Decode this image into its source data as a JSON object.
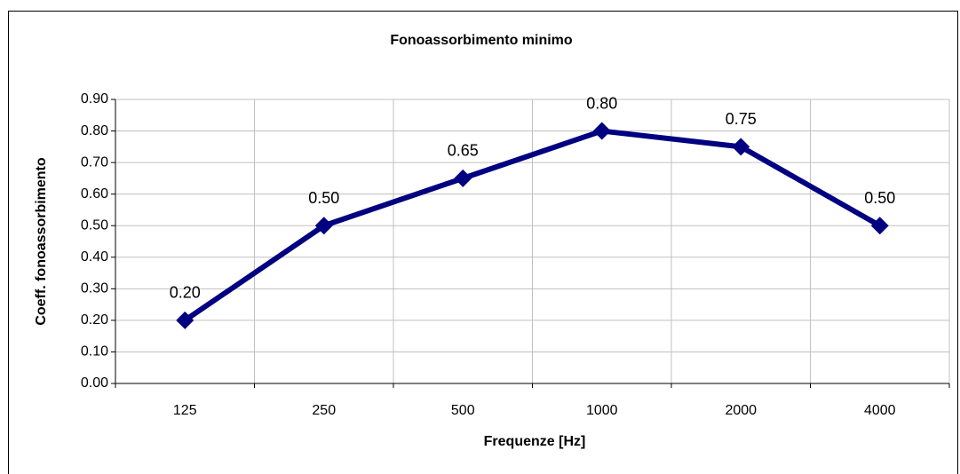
{
  "chart_data": {
    "type": "line",
    "title": "Fonoassorbimento minimo",
    "x_label": "Frequenze [Hz]",
    "y_label": "Coeff. fonoassorbimento",
    "categories": [
      "125",
      "250",
      "500",
      "1000",
      "2000",
      "4000"
    ],
    "series": [
      {
        "name": "Fonoassorbimento minimo",
        "color": "#000080",
        "values": [
          0.2,
          0.5,
          0.65,
          0.8,
          0.75,
          0.5
        ],
        "value_labels": [
          "0.20",
          "0.50",
          "0.65",
          "0.80",
          "0.75",
          "0.50"
        ]
      }
    ],
    "ylim": [
      0,
      0.9
    ],
    "yticks": [
      {
        "value": 0,
        "label": "0.00"
      },
      {
        "value": 0.1,
        "label": "0.10"
      },
      {
        "value": 0.2,
        "label": "0.20"
      },
      {
        "value": 0.3,
        "label": "0.30"
      },
      {
        "value": 0.4,
        "label": "0.40"
      },
      {
        "value": 0.5,
        "label": "0.50"
      },
      {
        "value": 0.6,
        "label": "0.60"
      },
      {
        "value": 0.7,
        "label": "0.70"
      },
      {
        "value": 0.8,
        "label": "0.80"
      },
      {
        "value": 0.9,
        "label": "0.90"
      }
    ],
    "grid": true
  }
}
